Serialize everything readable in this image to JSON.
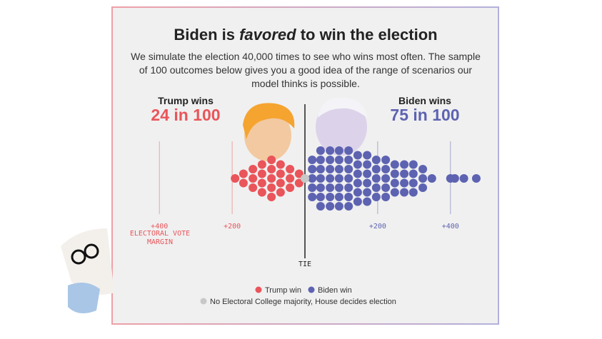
{
  "chart_data": {
    "type": "beeswarm",
    "title_parts": [
      "Biden is ",
      "favored",
      " to win the election"
    ],
    "subtitle": "We simulate the election 40,000 times to see who wins most often. The sample of 100 outcomes below gives you a good idea of the range of scenarios our model thinks is possible.",
    "trump_heading": "Trump wins",
    "trump_odds": "24 in 100",
    "biden_heading": "Biden wins",
    "biden_odds": "75 in 100",
    "x_label": "ELECTORAL VOTE MARGIN",
    "xlim": [
      -530,
      530
    ],
    "xticks": [
      {
        "value": -400,
        "label": "+400"
      },
      {
        "value": -200,
        "label": "+200"
      },
      {
        "value": 0,
        "label": "TIE"
      },
      {
        "value": 200,
        "label": "+200"
      },
      {
        "value": 400,
        "label": "+400"
      }
    ],
    "series": [
      {
        "name": "Trump win",
        "color": "#e9555a",
        "values": [
          -192,
          -169,
          -169,
          -143,
          -143,
          -143,
          -118,
          -118,
          -118,
          -118,
          -92,
          -92,
          -92,
          -92,
          -92,
          -67,
          -67,
          -67,
          -67,
          -41,
          -41,
          -41,
          -16,
          -16
        ]
      },
      {
        "name": "Biden win",
        "color": "#5d63b1",
        "values": [
          20,
          20,
          20,
          20,
          20,
          43,
          43,
          43,
          43,
          43,
          43,
          43,
          69,
          69,
          69,
          69,
          69,
          69,
          69,
          94,
          94,
          94,
          94,
          94,
          94,
          94,
          120,
          120,
          120,
          120,
          120,
          120,
          120,
          145,
          145,
          145,
          145,
          145,
          145,
          171,
          171,
          171,
          171,
          171,
          171,
          196,
          196,
          196,
          196,
          196,
          222,
          222,
          222,
          222,
          222,
          247,
          247,
          247,
          247,
          273,
          273,
          273,
          273,
          298,
          298,
          298,
          298,
          324,
          324,
          324,
          349,
          400,
          412,
          437,
          471
        ]
      },
      {
        "name": "No Electoral College majority, House decides election",
        "color": "#c8c8c8",
        "values": [
          0
        ]
      }
    ]
  }
}
